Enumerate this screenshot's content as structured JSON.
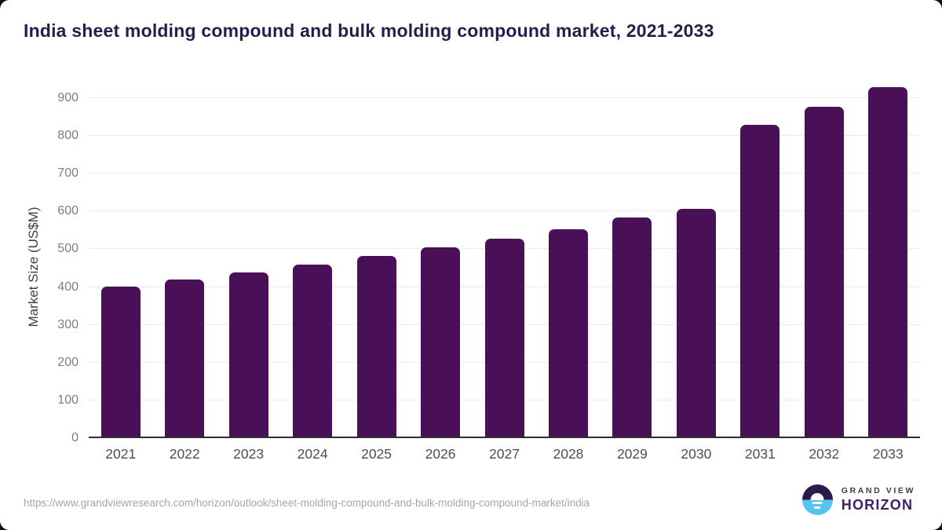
{
  "header": {
    "title": "India sheet molding compound and bulk molding compound market, 2021-2033"
  },
  "chart_data": {
    "type": "bar",
    "title": "India sheet molding compound and bulk molding compound market, 2021-2033",
    "categories": [
      "2021",
      "2022",
      "2023",
      "2024",
      "2025",
      "2026",
      "2027",
      "2028",
      "2029",
      "2030",
      "2031",
      "2032",
      "2033"
    ],
    "values": [
      401,
      420,
      438,
      459,
      482,
      506,
      529,
      553,
      584,
      608,
      830,
      877,
      929
    ],
    "xlabel": "",
    "ylabel": "Market Size (US$M)",
    "ylim": [
      0,
      956
    ],
    "yticks": [
      0,
      100,
      200,
      300,
      400,
      500,
      600,
      700,
      800,
      900
    ],
    "grid": true,
    "legend": "none",
    "bar_color": "#491058"
  },
  "footer": {
    "source_url": "https://www.grandviewresearch.com/horizon/outlook/sheet-molding-compound-and-bulk-molding-compound-market/india",
    "logo": {
      "line1": "GRAND VIEW",
      "line2": "HORIZON"
    }
  },
  "colors": {
    "bar": "#491058",
    "title": "#2d1a4d",
    "gridline": "#ececec",
    "axis_line": "#2e2e2e",
    "tick_label": "#7d7d7d",
    "logo_dark": "#2b1b47",
    "logo_blue": "#56c3f0"
  }
}
